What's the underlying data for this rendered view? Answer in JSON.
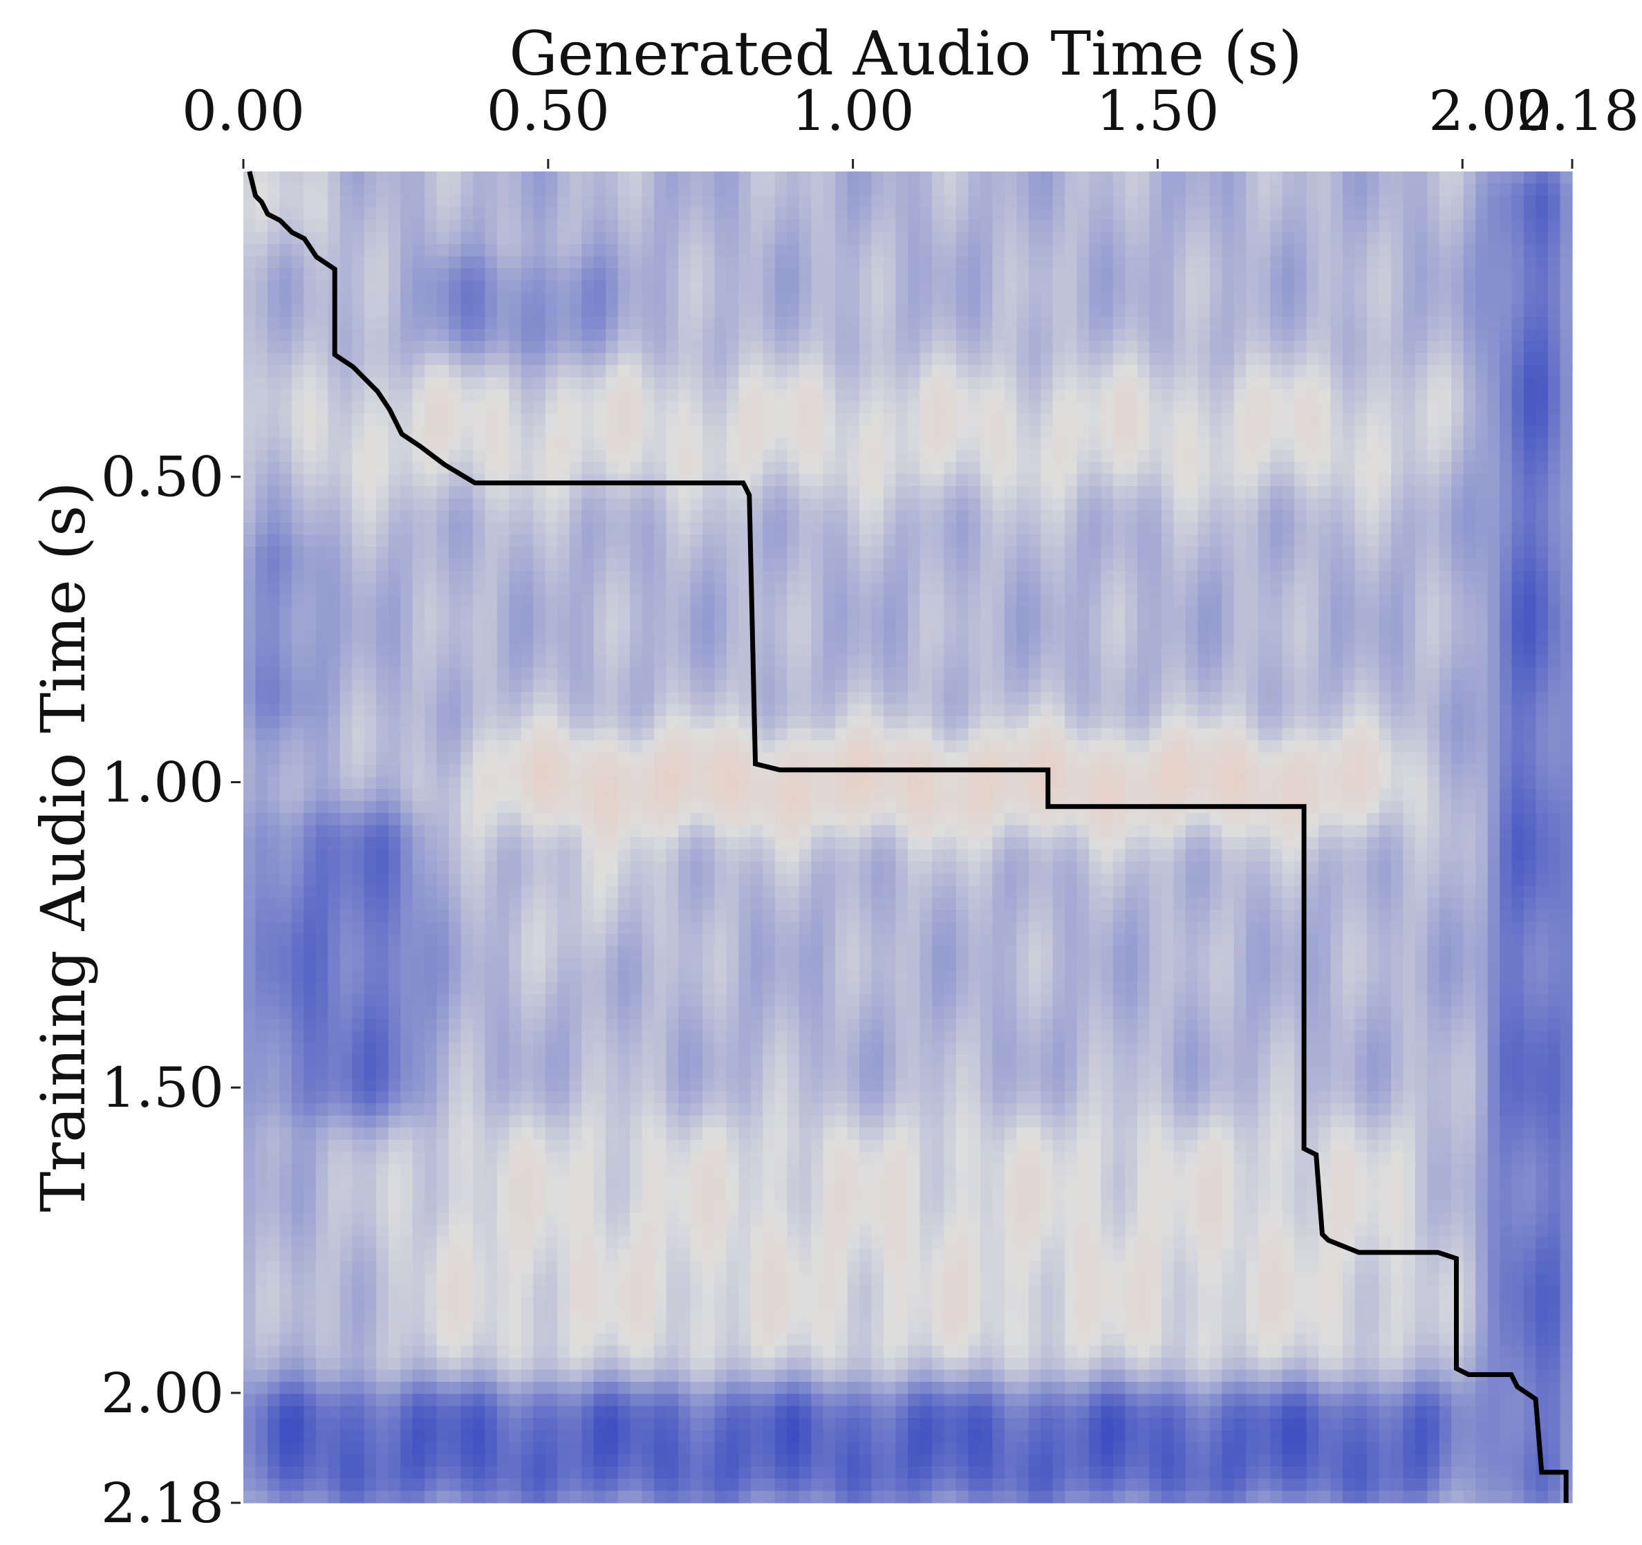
{
  "chart_data": {
    "type": "heatmap",
    "xlabel": "Generated Audio Time (s)",
    "ylabel": "Training Audio Time (s)",
    "x_axis_position": "top",
    "y_axis_position": "left",
    "xlim": [
      0,
      2.18
    ],
    "ylim": [
      0,
      2.18
    ],
    "y_inverted": true,
    "grid": false,
    "legend": "none",
    "x_ticks": [
      {
        "value": 0.0,
        "label": "0.00"
      },
      {
        "value": 0.5,
        "label": "0.50"
      },
      {
        "value": 1.0,
        "label": "1.00"
      },
      {
        "value": 1.5,
        "label": "1.50"
      },
      {
        "value": 2.0,
        "label": "2.00"
      },
      {
        "value": 2.18,
        "label": "2.18"
      }
    ],
    "y_ticks": [
      {
        "value": 0.5,
        "label": "0.50"
      },
      {
        "value": 1.0,
        "label": "1.00"
      },
      {
        "value": 1.5,
        "label": "1.50"
      },
      {
        "value": 2.0,
        "label": "2.00"
      },
      {
        "value": 2.18,
        "label": "2.18"
      }
    ],
    "colormap": {
      "name": "coolwarm",
      "low": "#3b4cc0",
      "mid": "#dddddd",
      "high": "#f7b89c"
    },
    "grid_resolution": 110,
    "high_similarity_bands": [
      {
        "y_from": 0.33,
        "y_to": 0.52,
        "x_from": 0.08,
        "x_to": 1.95,
        "strength": 0.5
      },
      {
        "y_from": 0.93,
        "y_to": 1.07,
        "x_from": 0.38,
        "x_to": 1.9,
        "strength": 0.95
      },
      {
        "y_from": 1.12,
        "y_to": 1.28,
        "x_from": 0.52,
        "x_to": 0.6,
        "strength": 0.6
      },
      {
        "y_from": 1.55,
        "y_to": 1.97,
        "x_from": 0.25,
        "x_to": 1.95,
        "strength": 0.45
      },
      {
        "y_from": 0.0,
        "y_to": 0.12,
        "x_from": 0.0,
        "x_to": 0.12,
        "strength": 0.6
      }
    ],
    "low_similarity_regions": [
      {
        "y_from": 1.99,
        "y_to": 2.18,
        "x_from": 0.0,
        "x_to": 1.99,
        "strength": 0.95
      },
      {
        "y_from": 0.0,
        "y_to": 2.18,
        "x_from": 2.05,
        "x_to": 2.18,
        "strength": 0.85
      },
      {
        "y_from": 1.05,
        "y_to": 1.55,
        "x_from": 0.02,
        "x_to": 0.3,
        "strength": 0.7
      },
      {
        "y_from": 0.6,
        "y_to": 0.9,
        "x_from": 0.0,
        "x_to": 0.12,
        "strength": 0.55
      },
      {
        "y_from": 0.15,
        "y_to": 0.3,
        "x_from": 0.3,
        "x_to": 0.6,
        "strength": 0.5
      }
    ],
    "alignment_path": {
      "color": "#000000",
      "points": [
        [
          0.01,
          0.0
        ],
        [
          0.02,
          0.04
        ],
        [
          0.03,
          0.05
        ],
        [
          0.04,
          0.07
        ],
        [
          0.06,
          0.08
        ],
        [
          0.08,
          0.1
        ],
        [
          0.1,
          0.11
        ],
        [
          0.12,
          0.14
        ],
        [
          0.15,
          0.16
        ],
        [
          0.15,
          0.3
        ],
        [
          0.18,
          0.32
        ],
        [
          0.22,
          0.36
        ],
        [
          0.24,
          0.39
        ],
        [
          0.26,
          0.43
        ],
        [
          0.29,
          0.45
        ],
        [
          0.33,
          0.48
        ],
        [
          0.38,
          0.51
        ],
        [
          0.82,
          0.51
        ],
        [
          0.83,
          0.53
        ],
        [
          0.84,
          0.97
        ],
        [
          0.88,
          0.98
        ],
        [
          1.32,
          0.98
        ],
        [
          1.32,
          1.04
        ],
        [
          1.74,
          1.04
        ],
        [
          1.74,
          1.6
        ],
        [
          1.76,
          1.61
        ],
        [
          1.77,
          1.74
        ],
        [
          1.78,
          1.75
        ],
        [
          1.83,
          1.77
        ],
        [
          1.96,
          1.77
        ],
        [
          1.99,
          1.78
        ],
        [
          1.99,
          1.96
        ],
        [
          2.01,
          1.97
        ],
        [
          2.08,
          1.97
        ],
        [
          2.09,
          1.99
        ],
        [
          2.12,
          2.01
        ],
        [
          2.13,
          2.13
        ],
        [
          2.17,
          2.13
        ],
        [
          2.17,
          2.18
        ]
      ]
    }
  }
}
